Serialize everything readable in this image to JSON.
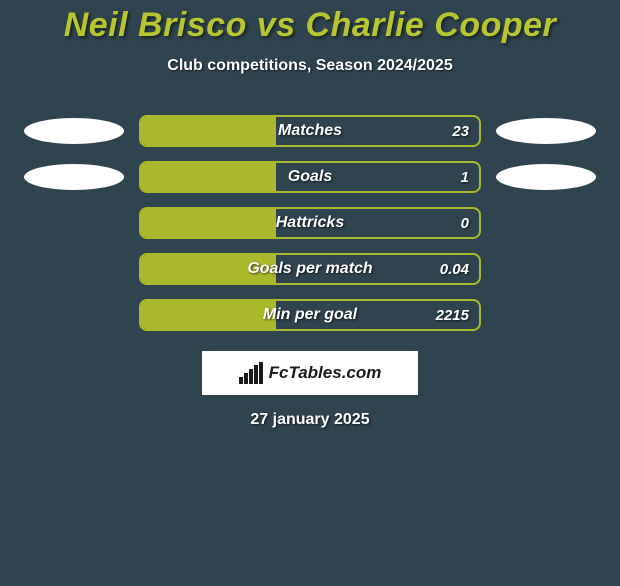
{
  "header": {
    "title": "Neil Brisco vs Charlie Cooper",
    "subtitle": "Club competitions, Season 2024/2025"
  },
  "colors": {
    "background": "#30444f",
    "accent": "#aab92c",
    "title_color": "#b7c62f",
    "text": "#ffffff",
    "ellipse": "#ffffff",
    "logo_bg": "#ffffff",
    "logo_fg": "#1a1a1a"
  },
  "stats": [
    {
      "label": "Matches",
      "value": "23",
      "fill_pct": 40,
      "show_left_ellipse": true,
      "show_right_ellipse": true
    },
    {
      "label": "Goals",
      "value": "1",
      "fill_pct": 40,
      "show_left_ellipse": true,
      "show_right_ellipse": true
    },
    {
      "label": "Hattricks",
      "value": "0",
      "fill_pct": 40,
      "show_left_ellipse": false,
      "show_right_ellipse": false
    },
    {
      "label": "Goals per match",
      "value": "0.04",
      "fill_pct": 40,
      "show_left_ellipse": false,
      "show_right_ellipse": false
    },
    {
      "label": "Min per goal",
      "value": "2215",
      "fill_pct": 40,
      "show_left_ellipse": false,
      "show_right_ellipse": false
    }
  ],
  "logo": {
    "text": "FcTables.com"
  },
  "footer": {
    "date": "27 january 2025"
  }
}
